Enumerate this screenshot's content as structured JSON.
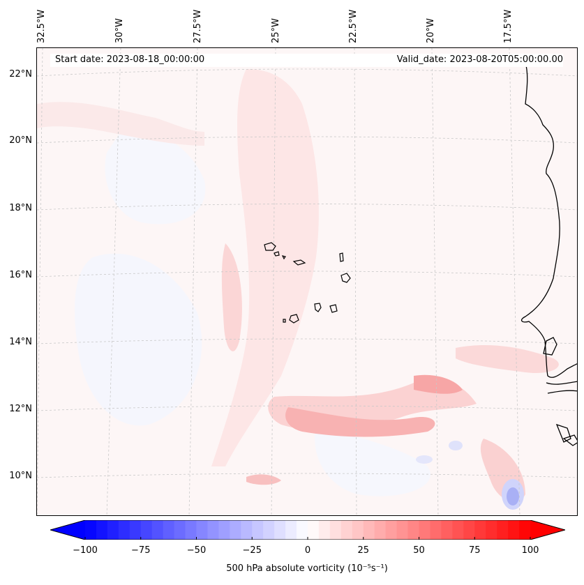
{
  "map": {
    "title_left": "Start date: 2023-08-18_00:00:00",
    "title_right": "Valid_date: 2023-08-20T05:00:00.00",
    "longitude_labels": [
      "32.5°W",
      "30°W",
      "27.5°W",
      "25°W",
      "22.5°W",
      "20°W",
      "17.5°W"
    ],
    "latitude_labels": [
      "22°N",
      "20°N",
      "18°N",
      "16°N",
      "14°N",
      "12°N",
      "10°N"
    ],
    "field": "500 hPa absolute vorticity",
    "units_label": "500 hPa absolute vorticity (10⁻⁵s⁻¹)",
    "colormap": {
      "low": "#0000ff",
      "mid": "#ffffff",
      "high": "#ff0000",
      "range": [
        -100,
        100
      ],
      "levels": 40
    },
    "colorbar_ticks": [
      "−100",
      "−75",
      "−50",
      "−25",
      "0",
      "25",
      "50",
      "75",
      "100"
    ],
    "coastline_color": "#000000",
    "gridline_color": "#c8c8c8"
  }
}
